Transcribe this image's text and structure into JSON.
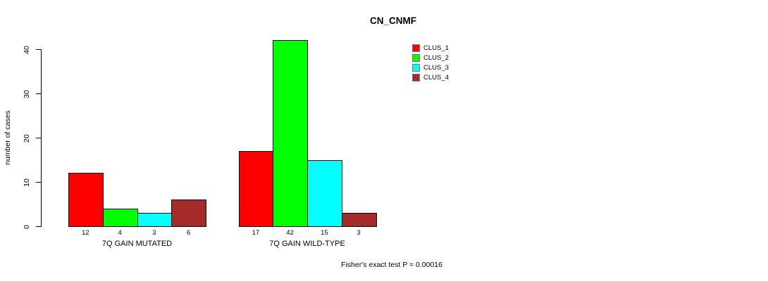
{
  "chart_data": {
    "type": "bar",
    "title": "CN_CNMF",
    "ylabel": "number of cases",
    "xlabel": "",
    "ylim": [
      0,
      40
    ],
    "yticks": [
      0,
      10,
      20,
      30,
      40
    ],
    "grid": false,
    "legend_position": "top-right-outside",
    "categories": [
      "7Q GAIN MUTATED",
      "7Q GAIN WILD-TYPE"
    ],
    "series": [
      {
        "name": "CLUS_1",
        "color": "#FF0000",
        "values": [
          12,
          17
        ]
      },
      {
        "name": "CLUS_2",
        "color": "#00FF00",
        "values": [
          4,
          42
        ]
      },
      {
        "name": "CLUS_3",
        "color": "#00FFFF",
        "values": [
          3,
          15
        ]
      },
      {
        "name": "CLUS_4",
        "color": "#A52A2A",
        "values": [
          6,
          3
        ]
      }
    ],
    "bar_value_labels_shown": true,
    "annotation": "Fisher's exact test P = 0.00016"
  },
  "colors": {
    "background": "#FFFFFF",
    "axis": "#000000",
    "text": "#000000"
  }
}
